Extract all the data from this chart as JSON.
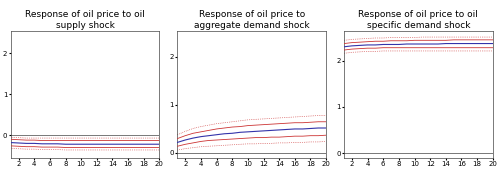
{
  "titles": [
    "Response of oil price to oil\nsupply shock",
    "Response of oil price to\naggregate demand shock",
    "Response of oil price to oil\nspecific demand shock"
  ],
  "x": [
    1,
    2,
    3,
    4,
    5,
    6,
    7,
    8,
    9,
    10,
    11,
    12,
    13,
    14,
    15,
    16,
    17,
    18,
    19,
    20
  ],
  "panel1": {
    "irf": [
      -0.18,
      -0.19,
      -0.2,
      -0.2,
      -0.21,
      -0.21,
      -0.21,
      -0.22,
      -0.22,
      -0.22,
      -0.22,
      -0.22,
      -0.22,
      -0.22,
      -0.22,
      -0.22,
      -0.22,
      -0.22,
      -0.22,
      -0.22
    ],
    "upper1": [
      -0.1,
      -0.11,
      -0.12,
      -0.12,
      -0.13,
      -0.13,
      -0.13,
      -0.13,
      -0.13,
      -0.13,
      -0.13,
      -0.13,
      -0.13,
      -0.13,
      -0.13,
      -0.13,
      -0.13,
      -0.13,
      -0.13,
      -0.13
    ],
    "lower1": [
      -0.26,
      -0.27,
      -0.28,
      -0.28,
      -0.29,
      -0.29,
      -0.29,
      -0.3,
      -0.3,
      -0.3,
      -0.3,
      -0.3,
      -0.3,
      -0.3,
      -0.3,
      -0.3,
      -0.3,
      -0.3,
      -0.3,
      -0.3
    ],
    "upper2": [
      -0.05,
      -0.06,
      -0.07,
      -0.07,
      -0.07,
      -0.07,
      -0.07,
      -0.07,
      -0.07,
      -0.07,
      -0.07,
      -0.07,
      -0.07,
      -0.07,
      -0.07,
      -0.07,
      -0.07,
      -0.07,
      -0.07,
      -0.07
    ],
    "lower2": [
      -0.32,
      -0.33,
      -0.34,
      -0.34,
      -0.35,
      -0.35,
      -0.35,
      -0.36,
      -0.36,
      -0.36,
      -0.36,
      -0.36,
      -0.36,
      -0.36,
      -0.36,
      -0.36,
      -0.36,
      -0.36,
      -0.36,
      -0.36
    ],
    "ylim": [
      -0.55,
      2.55
    ],
    "yticks": [
      0.0,
      1.0,
      2.0
    ]
  },
  "panel2": {
    "irf": [
      0.22,
      0.27,
      0.31,
      0.34,
      0.36,
      0.38,
      0.4,
      0.41,
      0.43,
      0.44,
      0.45,
      0.46,
      0.47,
      0.48,
      0.49,
      0.5,
      0.5,
      0.51,
      0.52,
      0.52
    ],
    "upper1": [
      0.3,
      0.36,
      0.41,
      0.44,
      0.47,
      0.5,
      0.52,
      0.54,
      0.55,
      0.57,
      0.58,
      0.59,
      0.6,
      0.61,
      0.62,
      0.63,
      0.63,
      0.64,
      0.65,
      0.65
    ],
    "lower1": [
      0.14,
      0.18,
      0.21,
      0.24,
      0.26,
      0.27,
      0.28,
      0.29,
      0.3,
      0.31,
      0.32,
      0.32,
      0.33,
      0.33,
      0.34,
      0.35,
      0.35,
      0.36,
      0.36,
      0.37
    ],
    "upper2": [
      0.38,
      0.45,
      0.51,
      0.55,
      0.58,
      0.61,
      0.63,
      0.65,
      0.67,
      0.69,
      0.7,
      0.71,
      0.72,
      0.73,
      0.74,
      0.75,
      0.76,
      0.77,
      0.78,
      0.78
    ],
    "lower2": [
      0.06,
      0.09,
      0.11,
      0.13,
      0.14,
      0.15,
      0.16,
      0.17,
      0.18,
      0.19,
      0.19,
      0.2,
      0.2,
      0.21,
      0.21,
      0.22,
      0.22,
      0.23,
      0.23,
      0.24
    ],
    "ylim": [
      -0.1,
      2.55
    ],
    "yticks": [
      0.0,
      1.0,
      2.0
    ]
  },
  "panel3": {
    "irf": [
      2.3,
      2.32,
      2.33,
      2.34,
      2.34,
      2.35,
      2.35,
      2.35,
      2.36,
      2.36,
      2.36,
      2.36,
      2.36,
      2.37,
      2.37,
      2.37,
      2.37,
      2.37,
      2.37,
      2.37
    ],
    "upper1": [
      2.37,
      2.39,
      2.4,
      2.41,
      2.42,
      2.42,
      2.43,
      2.43,
      2.43,
      2.44,
      2.44,
      2.44,
      2.44,
      2.44,
      2.45,
      2.45,
      2.45,
      2.45,
      2.45,
      2.45
    ],
    "lower1": [
      2.23,
      2.25,
      2.26,
      2.27,
      2.27,
      2.28,
      2.28,
      2.28,
      2.28,
      2.28,
      2.28,
      2.28,
      2.28,
      2.28,
      2.28,
      2.28,
      2.28,
      2.28,
      2.28,
      2.28
    ],
    "upper2": [
      2.44,
      2.46,
      2.47,
      2.48,
      2.49,
      2.49,
      2.5,
      2.5,
      2.5,
      2.5,
      2.51,
      2.51,
      2.51,
      2.51,
      2.51,
      2.51,
      2.51,
      2.51,
      2.51,
      2.51
    ],
    "lower2": [
      2.16,
      2.18,
      2.19,
      2.2,
      2.2,
      2.21,
      2.21,
      2.21,
      2.21,
      2.21,
      2.21,
      2.21,
      2.21,
      2.21,
      2.21,
      2.21,
      2.21,
      2.21,
      2.21,
      2.21
    ],
    "ylim": [
      -0.1,
      2.65
    ],
    "yticks": [
      0.0,
      1.0,
      2.0
    ]
  },
  "irf_color": "#3333aa",
  "ci1_color": "#cc3333",
  "ci2_color": "#cc3333",
  "zero_color": "#777777",
  "bg_color": "#ffffff",
  "title_fontsize": 6.5,
  "tick_fontsize": 5.0,
  "linewidth_irf": 0.8,
  "linewidth_ci1": 0.6,
  "linewidth_ci2": 0.5,
  "linewidth_zero": 0.7
}
